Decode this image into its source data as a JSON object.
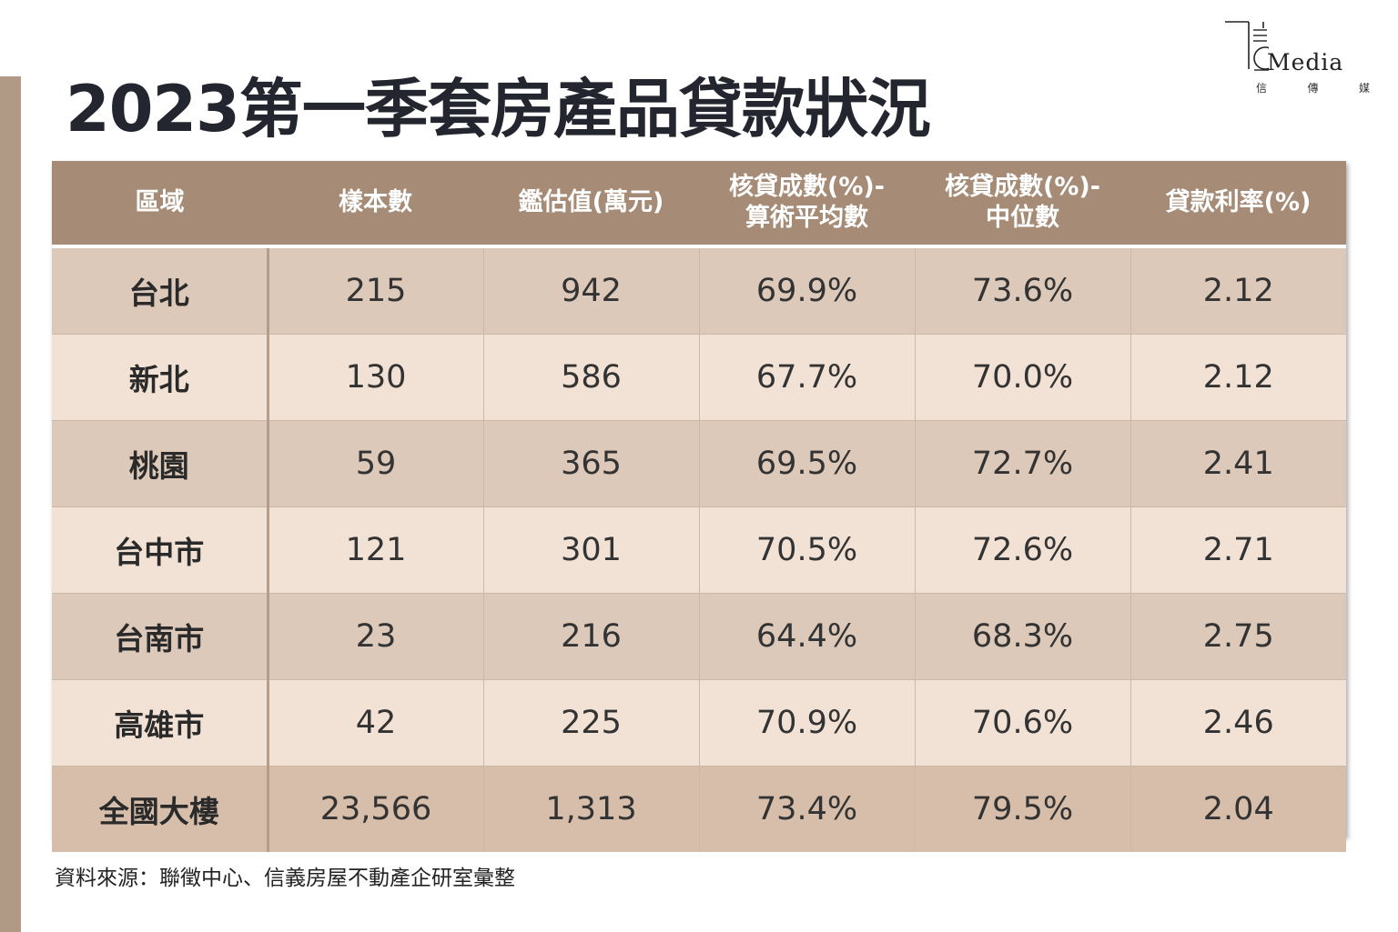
{
  "title": "2023第一季套房產品貸款狀況",
  "logo": {
    "word": "Media",
    "cn": [
      "信",
      "傳",
      "媒"
    ]
  },
  "colors": {
    "header_bg": "#a68c77",
    "row_dark": "#dcc9b9",
    "row_light": "#f2e2d6",
    "side_bar": "#b09a86"
  },
  "chart_data": {
    "type": "table",
    "title": "2023第一季套房產品貸款狀況",
    "columns": [
      "區域",
      "樣本數",
      "鑑估值(萬元)",
      "核貸成數(%)-\n算術平均數",
      "核貸成數(%)-\n中位數",
      "貸款利率(%)"
    ],
    "rows": [
      [
        "台北",
        "215",
        "942",
        "69.9%",
        "73.6%",
        "2.12"
      ],
      [
        "新北",
        "130",
        "586",
        "67.7%",
        "70.0%",
        "2.12"
      ],
      [
        "桃園",
        "59",
        "365",
        "69.5%",
        "72.7%",
        "2.41"
      ],
      [
        "台中市",
        "121",
        "301",
        "70.5%",
        "72.6%",
        "2.71"
      ],
      [
        "台南市",
        "23",
        "216",
        "64.4%",
        "68.3%",
        "2.75"
      ],
      [
        "高雄市",
        "42",
        "225",
        "70.9%",
        "70.6%",
        "2.46"
      ],
      [
        "全國大樓",
        "23,566",
        "1,313",
        "73.4%",
        "79.5%",
        "2.04"
      ]
    ]
  },
  "source": "資料來源：聯徵中心、信義房屋不動產企研室彙整"
}
